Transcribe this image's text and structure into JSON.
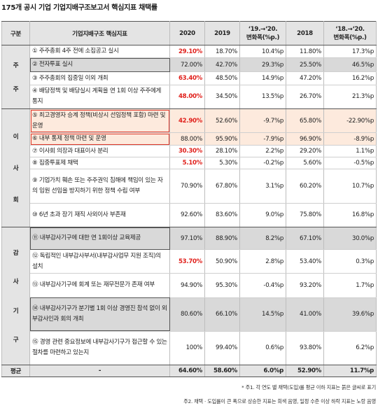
{
  "title": "175개 공시 기업 기업지배구조보고서 핵심지표 채택률",
  "headers": {
    "category": "구분",
    "indicator": "기업지배구조 핵심지표",
    "y2020": "2020",
    "y2019": "2019",
    "chg1_l1": "‘19.→‘20.",
    "chg1_l2": "변화폭(%p.)",
    "y2018": "2018",
    "chg2_l1": "‘18.→‘20.",
    "chg2_l2": "변화폭(%p.)"
  },
  "groups": {
    "shareholders": [
      "주",
      "주"
    ],
    "board": [
      "이",
      "사",
      "회"
    ],
    "audit": [
      "감",
      "사",
      "기",
      "구"
    ]
  },
  "rows": [
    {
      "indicator": "① 주주총회 4주 전에 소집공고 실시",
      "v2020": "29.10%",
      "v2019": "18.70%",
      "chg1": "10.4%p",
      "v2018": "11.80%",
      "chg2": "17.3%p"
    },
    {
      "indicator": "② 전자투표 실시",
      "v2020": "72.00%",
      "v2019": "42.70%",
      "chg1": "29.3%p",
      "v2018": "25.50%",
      "chg2": "46.5%p"
    },
    {
      "indicator": "③ 주주총회의 집중일 이외 개최",
      "v2020": "63.40%",
      "v2019": "48.50%",
      "chg1": "14.9%p",
      "v2018": "47.20%",
      "chg2": "16.2%p"
    },
    {
      "indicator": "④ 배당정책 및 배당실시 계획을 연 1회 이상 주주에게 통지",
      "v2020": "48.00%",
      "v2019": "34.50%",
      "chg1": "13.5%p",
      "v2018": "26.70%",
      "chg2": "21.3%p"
    },
    {
      "indicator": "⑤ 최고경영자 승계 정책(비상시 선임정책 포함) 마련 및 운영",
      "v2020": "42.90%",
      "v2019": "52.60%",
      "chg1": "-9.7%p",
      "v2018": "65.80%",
      "chg2": "-22.90%p"
    },
    {
      "indicator": "⑥ 내부 통제 정책 마련 및 운영",
      "v2020": "88.00%",
      "v2019": "95.90%",
      "chg1": "-7.9%p",
      "v2018": "96.90%",
      "chg2": "-8.9%p"
    },
    {
      "indicator": "⑦ 이사회 의장과 대표이사 분리",
      "v2020": "30.30%",
      "v2019": "28.10%",
      "chg1": "2.2%p",
      "v2018": "29.20%",
      "chg2": "1.1%p"
    },
    {
      "indicator": "⑧ 집중투표제 채택",
      "v2020": "5.10%",
      "v2019": "5.30%",
      "chg1": "-0.2%p",
      "v2018": "5.60%",
      "chg2": "-0.5%p"
    },
    {
      "indicator": "⑨ 기업가치 훼손 또는 주주권익 침해에 책임이 있는 자의 임원 선임을 방지하기 위한 정책 수립 여부",
      "v2020": "70.90%",
      "v2019": "67.80%",
      "chg1": "3.1%p",
      "v2018": "60.20%",
      "chg2": "10.7%p"
    },
    {
      "indicator": "⑩ 6년 초과 장기 재직 사외이사 부존재",
      "v2020": "92.60%",
      "v2019": "83.60%",
      "chg1": "9.0%p",
      "v2018": "75.80%",
      "chg2": "16.8%p"
    },
    {
      "indicator": "⑪ 내부감사기구에 대한 연 1회이상 교육제공",
      "v2020": "97.10%",
      "v2019": "88.90%",
      "chg1": "8.2%p",
      "v2018": "67.10%",
      "chg2": "30.0%p"
    },
    {
      "indicator": "⑫ 독립적인 내부감사부서(내부감사업무 지원 조직)의 설치",
      "v2020": "53.70%",
      "v2019": "50.90%",
      "chg1": "2.8%p",
      "v2018": "53.40%",
      "chg2": "0.3%p"
    },
    {
      "indicator": "⑬ 내부감사기구에 회계 또는 재무전문가 존재 여부",
      "v2020": "94.90%",
      "v2019": "95.30%",
      "chg1": "-0.4%p",
      "v2018": "93.20%",
      "chg2": "1.7%p"
    },
    {
      "indicator": "⑭ 내부감사기구가 분기별 1회 이상 경영진 참석 없이 외부감사인과 회의 개최",
      "v2020": "80.60%",
      "v2019": "66.10%",
      "chg1": "14.5%p",
      "v2018": "41.00%",
      "chg2": "39.6%p"
    },
    {
      "indicator": "⑮ 경영 관련 중요정보에 내부감사기구가 접근할 수 있는 절차를 마련하고 있는지",
      "v2020": "100%",
      "v2019": "99.40%",
      "chg1": "0.6%p",
      "v2018": "93.80%",
      "chg2": "6.2%p"
    }
  ],
  "average": {
    "label": "평균",
    "indicator": "-",
    "v2020": "64.60%",
    "v2019": "58.60%",
    "chg1": "6.0%p",
    "v2018": "52.90%",
    "chg2": "11.7%p"
  },
  "footnotes": [
    "* 주1. 각 연도 별 채택(도입)률 평균 이하 지표는 붉은 글씨로 표기",
    "주2. 채택 · 도입률이 큰 폭으로 상승한 지표는 회색 음영, 일정 수준 이상 하락 지표는 노랑 음영"
  ],
  "colors": {
    "highlight_text": "#e0201b",
    "gray_shade": "#d9d9d9",
    "decline_shade": "#fdeadd",
    "decline_border": "#e03a2c"
  }
}
